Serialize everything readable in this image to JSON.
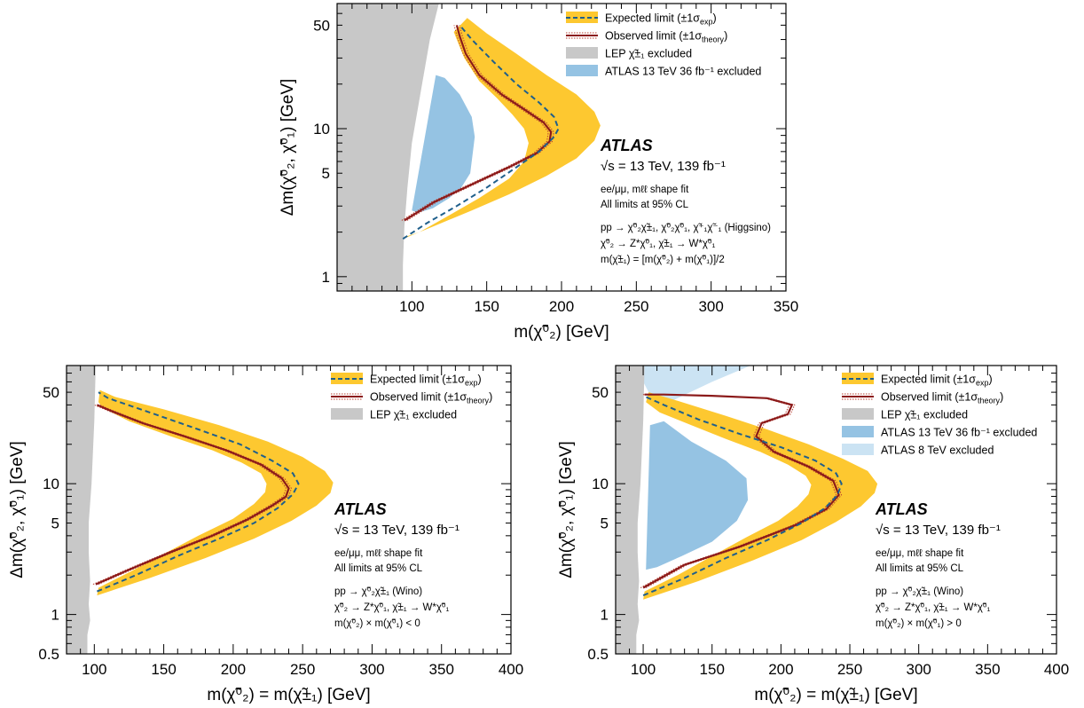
{
  "figure": {
    "colors": {
      "expected_band": "#fdc830",
      "expected_line": "#1f5f8b",
      "observed_line": "#8b1a1a",
      "lep": "#c8c8c8",
      "atlas36": "#95c3e3",
      "atlas8": "#cbe3f3"
    }
  },
  "chart_data": [
    {
      "type": "line",
      "panel": "higgsino",
      "xlabel": "m(χ̃⁰₂) [GeV]",
      "ylabel": "Δm(χ̃⁰₂, χ̃⁰₁) [GeV]",
      "xlim": [
        50,
        350
      ],
      "ylim": [
        0.8,
        70
      ],
      "yscale": "log",
      "xticks": [
        100,
        150,
        200,
        250,
        300,
        350
      ],
      "yticks": [
        1,
        5,
        10,
        50
      ],
      "grid": false,
      "legend_position": "top-right",
      "legend": [
        {
          "label": "Expected limit (±1σ",
          "sub": "exp",
          "close": ")",
          "kind": "expected"
        },
        {
          "label": "Observed limit (±1σ",
          "sub": "theory",
          "close": ")",
          "kind": "observed"
        },
        {
          "label": "LEP χ̃±₁ excluded",
          "sub": "",
          "close": "",
          "kind": "lep"
        },
        {
          "label": "ATLAS 13 TeV 36 fb⁻¹ excluded",
          "sub": "",
          "close": "",
          "kind": "atlas36"
        }
      ],
      "annotations": {
        "experiment": "ATLAS",
        "energy": "√s = 13 TeV, 139 fb⁻¹",
        "lines": [
          "ee/μμ, mℓℓ shape fit",
          "All limits at 95% CL",
          "pp → χ̃⁰₂χ̃±₁, χ̃⁰₂χ̃⁰₁, χ̃⁺₁χ̃⁻₁ (Higgsino)",
          "χ̃⁰₂ → Z*χ̃⁰₁, χ̃±₁ → W*χ̃⁰₁",
          "m(χ̃±₁) = [m(χ̃⁰₂) + m(χ̃⁰₁)]/2"
        ]
      },
      "series": [
        {
          "name": "Expected limit",
          "x": [
            94,
            110,
            130,
            150,
            170,
            185,
            195,
            198,
            195,
            185,
            170,
            155,
            140,
            132
          ],
          "y": [
            1.8,
            2.3,
            3.0,
            4.0,
            5.5,
            7.0,
            8.8,
            10,
            12,
            15,
            20,
            28,
            40,
            50
          ]
        },
        {
          "name": "Expected band upper",
          "x": [
            94,
            115,
            140,
            165,
            190,
            210,
            222,
            226,
            222,
            210,
            190,
            170,
            150,
            137
          ],
          "y": [
            1.8,
            2.2,
            2.8,
            3.6,
            4.8,
            6.3,
            8.3,
            10.5,
            13,
            17,
            23,
            32,
            44,
            56
          ]
        },
        {
          "name": "Expected band lower",
          "x": [
            95,
            105,
            125,
            145,
            165,
            175,
            178,
            175,
            167,
            157,
            145,
            135,
            130,
            128
          ],
          "y": [
            1.85,
            2.0,
            2.6,
            3.4,
            4.6,
            6.0,
            8.0,
            10,
            12.5,
            16,
            21,
            30,
            40,
            45
          ]
        },
        {
          "name": "Observed limit",
          "x": [
            95,
            115,
            140,
            165,
            183,
            192,
            193,
            188,
            175,
            160,
            145,
            136,
            132,
            130
          ],
          "y": [
            2.4,
            3.2,
            4.2,
            5.5,
            6.8,
            8.2,
            9.5,
            11,
            13.5,
            17,
            23,
            32,
            42,
            50
          ]
        },
        {
          "name": "LEP excluded boundary",
          "x": [
            50,
            118,
            112,
            106,
            100,
            97,
            95,
            94,
            94,
            50
          ],
          "y": [
            70,
            70,
            40,
            18,
            8,
            4,
            2.2,
            1.2,
            0.8,
            0.8
          ]
        },
        {
          "name": "ATLAS 13 TeV 36 fb⁻¹ excluded",
          "x": [
            100,
            116,
            122,
            132,
            140,
            142,
            139,
            133,
            125,
            114,
            104,
            100
          ],
          "y": [
            2.8,
            23,
            22,
            17,
            12,
            8.8,
            5.0,
            4.0,
            3.4,
            2.9,
            2.7,
            2.8
          ]
        }
      ]
    },
    {
      "type": "line",
      "panel": "wino-minus",
      "xlabel": "m(χ̃⁰₂) = m(χ̃±₁) [GeV]",
      "ylabel": "Δm(χ̃⁰₂, χ̃⁰₁) [GeV]",
      "xlim": [
        80,
        400
      ],
      "ylim": [
        0.5,
        80
      ],
      "yscale": "log",
      "xticks": [
        100,
        150,
        200,
        250,
        300,
        350,
        400
      ],
      "yticks": [
        0.5,
        1,
        5,
        10,
        50
      ],
      "grid": false,
      "legend_position": "top-right",
      "legend": [
        {
          "label": "Expected limit (±1σ",
          "sub": "exp",
          "close": ")",
          "kind": "expected"
        },
        {
          "label": "Observed limit (±1σ",
          "sub": "theory",
          "close": ")",
          "kind": "observed"
        },
        {
          "label": "LEP χ̃±₁ excluded",
          "sub": "",
          "close": "",
          "kind": "lep"
        }
      ],
      "annotations": {
        "experiment": "ATLAS",
        "energy": "√s = 13 TeV, 139 fb⁻¹",
        "lines": [
          "ee/μμ, mℓℓ shape fit",
          "All limits at 95% CL",
          "pp → χ̃⁰₂χ̃±₁ (Wino)",
          "χ̃⁰₂ → Z*χ̃⁰₁, χ̃±₁ → W*χ̃⁰₁",
          "m(χ̃⁰₂) × m(χ̃⁰₁) < 0"
        ]
      },
      "series": [
        {
          "name": "Expected limit",
          "x": [
            102,
            130,
            160,
            190,
            215,
            232,
            243,
            247,
            243,
            228,
            205,
            175,
            140,
            110,
            103
          ],
          "y": [
            1.5,
            2.0,
            2.8,
            3.8,
            5.0,
            6.5,
            8.3,
            10,
            12,
            15,
            20,
            26,
            35,
            45,
            50
          ]
        },
        {
          "name": "Expected band upper",
          "x": [
            102,
            140,
            180,
            215,
            242,
            260,
            270,
            272,
            266,
            250,
            225,
            190,
            150,
            115,
            104
          ],
          "y": [
            1.4,
            1.9,
            2.7,
            3.8,
            5.2,
            6.8,
            8.5,
            10.2,
            12.5,
            16,
            21,
            28,
            37,
            46,
            52
          ]
        },
        {
          "name": "Expected band lower",
          "x": [
            103,
            125,
            150,
            175,
            200,
            215,
            223,
            224,
            220,
            206,
            185,
            155,
            125,
            106,
            103
          ],
          "y": [
            1.6,
            2.1,
            2.9,
            4.0,
            5.4,
            7.0,
            8.6,
            10,
            12,
            14.5,
            18,
            23,
            30,
            38,
            42
          ]
        },
        {
          "name": "Observed limit",
          "x": [
            101,
            125,
            155,
            185,
            210,
            228,
            238,
            240,
            235,
            220,
            195,
            165,
            135,
            112,
            102
          ],
          "y": [
            1.7,
            2.2,
            3.0,
            4.0,
            5.3,
            6.8,
            8.0,
            9.2,
            11,
            14,
            18,
            23,
            29,
            36,
            40
          ]
        },
        {
          "name": "LEP excluded boundary",
          "x": [
            80,
            101,
            100,
            98,
            96,
            96,
            97,
            96,
            97,
            95,
            95,
            80
          ],
          "y": [
            80,
            80,
            30,
            10,
            5,
            3,
            1.8,
            1.2,
            0.9,
            0.7,
            0.5,
            0.5
          ]
        }
      ]
    },
    {
      "type": "line",
      "panel": "wino-plus",
      "xlabel": "m(χ̃⁰₂) = m(χ̃±₁) [GeV]",
      "ylabel": "Δm(χ̃⁰₂, χ̃⁰₁) [GeV]",
      "xlim": [
        80,
        400
      ],
      "ylim": [
        0.5,
        80
      ],
      "yscale": "log",
      "xticks": [
        100,
        150,
        200,
        250,
        300,
        350,
        400
      ],
      "yticks": [
        0.5,
        1,
        5,
        10,
        50
      ],
      "grid": false,
      "legend_position": "top-right",
      "legend": [
        {
          "label": "Expected limit (±1σ",
          "sub": "exp",
          "close": ")",
          "kind": "expected"
        },
        {
          "label": "Observed limit (±1σ",
          "sub": "theory",
          "close": ")",
          "kind": "observed"
        },
        {
          "label": "LEP χ̃±₁ excluded",
          "sub": "",
          "close": "",
          "kind": "lep"
        },
        {
          "label": "ATLAS 13 TeV 36 fb⁻¹ excluded",
          "sub": "",
          "close": "",
          "kind": "atlas36"
        },
        {
          "label": "ATLAS 8 TeV excluded",
          "sub": "",
          "close": "",
          "kind": "atlas8"
        }
      ],
      "annotations": {
        "experiment": "ATLAS",
        "energy": "√s = 13 TeV, 139 fb⁻¹",
        "lines": [
          "ee/μμ, mℓℓ shape fit",
          "All limits at 95% CL",
          "pp → χ̃⁰₂χ̃±₁ (Wino)",
          "χ̃⁰₂ → Z*χ̃⁰₁, χ̃±₁ → W*χ̃⁰₁",
          "m(χ̃⁰₂) × m(χ̃⁰₁) > 0"
        ]
      },
      "series": [
        {
          "name": "Expected limit",
          "x": [
            100,
            130,
            160,
            190,
            215,
            232,
            241,
            244,
            240,
            225,
            200,
            170,
            140,
            115,
            102
          ],
          "y": [
            1.4,
            1.9,
            2.7,
            3.7,
            5.0,
            6.5,
            8.2,
            10,
            12,
            15,
            19,
            24,
            31,
            40,
            46
          ]
        },
        {
          "name": "Expected band upper",
          "x": [
            100,
            140,
            180,
            215,
            240,
            258,
            268,
            270,
            263,
            245,
            220,
            190,
            160,
            125,
            104
          ],
          "y": [
            1.3,
            1.8,
            2.6,
            3.7,
            5.1,
            6.7,
            8.5,
            10,
            12.5,
            15.5,
            20,
            26,
            33,
            43,
            50
          ]
        },
        {
          "name": "Expected band lower",
          "x": [
            101,
            125,
            150,
            175,
            198,
            212,
            220,
            222,
            218,
            205,
            185,
            160,
            135,
            112,
            102
          ],
          "y": [
            1.5,
            2.0,
            2.8,
            3.9,
            5.2,
            6.7,
            8.3,
            9.8,
            11.5,
            14,
            17.5,
            22,
            28,
            35,
            42
          ]
        },
        {
          "name": "Observed limit",
          "x": [
            100,
            130,
            170,
            210,
            233,
            242,
            238,
            220,
            195,
            182,
            186,
            205,
            208,
            190,
            150,
            115,
            101
          ],
          "y": [
            1.6,
            2.4,
            3.3,
            4.8,
            6.4,
            8.2,
            10.5,
            13.5,
            17.5,
            23,
            29,
            34,
            40,
            45,
            47,
            48,
            48
          ]
        },
        {
          "name": "LEP excluded boundary",
          "x": [
            80,
            101,
            100,
            98,
            96,
            96,
            97,
            96,
            97,
            95,
            95,
            80
          ],
          "y": [
            80,
            80,
            30,
            10,
            5,
            3,
            1.8,
            1.2,
            0.9,
            0.7,
            0.5,
            0.5
          ]
        },
        {
          "name": "ATLAS 13 TeV 36 fb⁻¹ excluded",
          "x": [
            102,
            105,
            115,
            135,
            160,
            175,
            176,
            168,
            150,
            128,
            110,
            102
          ],
          "y": [
            2.2,
            28,
            30,
            21,
            15,
            11,
            7.5,
            5.2,
            3.6,
            2.8,
            2.3,
            2.2
          ]
        },
        {
          "name": "ATLAS 8 TeV excluded",
          "x": [
            100,
            100,
            178,
            150,
            125,
            110,
            100
          ],
          "y": [
            60,
            80,
            80,
            60,
            45,
            38,
            60
          ]
        }
      ]
    }
  ]
}
